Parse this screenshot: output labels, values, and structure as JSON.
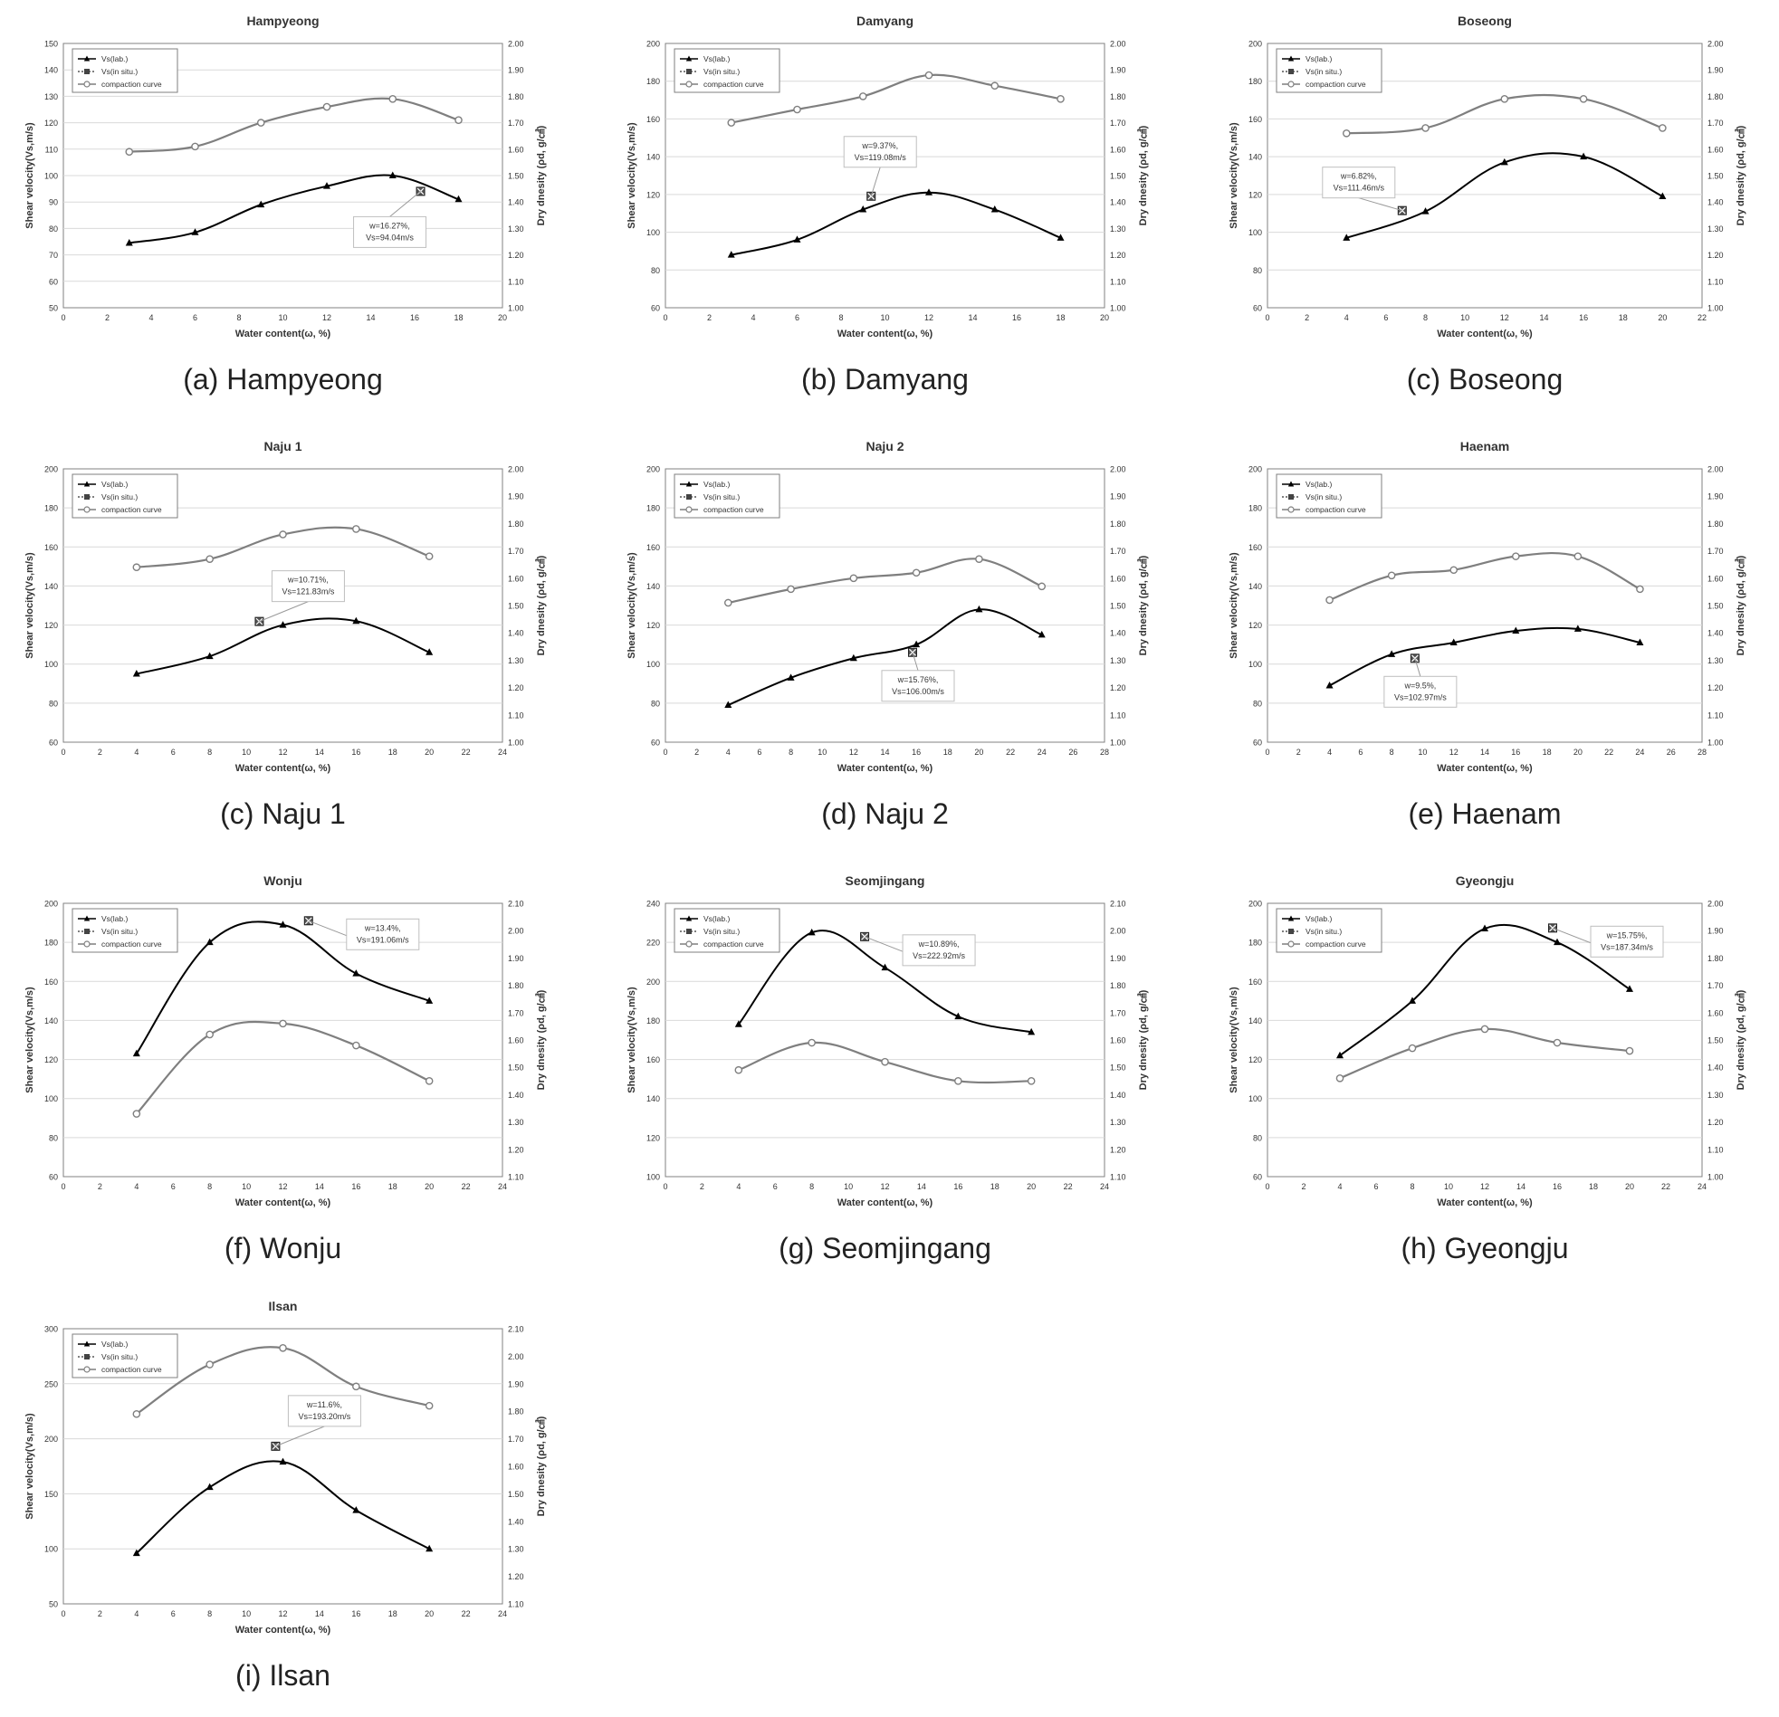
{
  "legend": {
    "lab": "Vs(lab.)",
    "insitu": "Vs(in situ.)",
    "compaction": "compaction curve"
  },
  "axes": {
    "x_label": "Water content(ω, %)",
    "y_left_label": "Shear velocity(Vs,m/s)",
    "y_right_label": "Dry dnesity (ρd, g/㎤)"
  },
  "colors": {
    "vs_line": "#000000",
    "compaction_line": "#7f7f7f",
    "axis": "#808080",
    "grid": "#d9d9d9",
    "text": "#333333"
  },
  "chart_data": [
    {
      "id": "hampyeong",
      "type": "line",
      "title": "Hampyeong",
      "caption": "(a) Hampyeong",
      "xlabel": "Water content(ω, %)",
      "ylabel": "Shear velocity(Vs,m/s)",
      "y2label": "Dry dnesity (ρd, g/㎤)",
      "xlim": [
        0,
        20
      ],
      "xstep": 2,
      "ylim": [
        50,
        150
      ],
      "ystep": 10,
      "y2lim": [
        1.0,
        2.0
      ],
      "y2step": 0.1,
      "grid": true,
      "legend": "top-left",
      "series": [
        {
          "name": "Vs(lab.)",
          "axis": "left",
          "marker": "triangle",
          "x": [
            3,
            6,
            9,
            12,
            15,
            18
          ],
          "values": [
            74.5,
            78.5,
            89,
            96,
            100,
            91
          ]
        },
        {
          "name": "compaction curve",
          "axis": "right",
          "marker": "circle",
          "x": [
            3,
            6,
            9,
            12,
            15,
            18
          ],
          "values": [
            1.59,
            1.61,
            1.7,
            1.76,
            1.79,
            1.71
          ]
        }
      ],
      "insitu": {
        "name": "Vs(in situ.)",
        "x": 16.27,
        "y": 94.04,
        "annotation": [
          "w=16.27%,",
          "Vs=94.04m/s"
        ],
        "label_pos": "below-left"
      }
    },
    {
      "id": "damyang",
      "type": "line",
      "title": "Damyang",
      "caption": "(b) Damyang",
      "xlabel": "Water content(ω, %)",
      "ylabel": "Shear velocity(Vs,m/s)",
      "y2label": "Dry dnesity (ρd, g/㎤)",
      "xlim": [
        0,
        20
      ],
      "xstep": 2,
      "ylim": [
        60,
        200
      ],
      "ystep": 20,
      "y2lim": [
        1.0,
        2.0
      ],
      "y2step": 0.1,
      "grid": true,
      "legend": "top-left",
      "series": [
        {
          "name": "Vs(lab.)",
          "axis": "left",
          "marker": "triangle",
          "x": [
            3,
            6,
            9,
            12,
            15,
            18
          ],
          "values": [
            88,
            96,
            112,
            121,
            112,
            97
          ]
        },
        {
          "name": "compaction curve",
          "axis": "right",
          "marker": "circle",
          "x": [
            3,
            6,
            9,
            12,
            15,
            18
          ],
          "values": [
            1.7,
            1.75,
            1.8,
            1.88,
            1.84,
            1.79
          ]
        }
      ],
      "insitu": {
        "name": "Vs(in situ.)",
        "x": 9.37,
        "y": 119.08,
        "annotation": [
          "w=9.37%,",
          "Vs=119.08m/s"
        ],
        "label_pos": "above"
      }
    },
    {
      "id": "boseong",
      "type": "line",
      "title": "Boseong",
      "caption": "(c) Boseong",
      "xlabel": "Water content(ω, %)",
      "ylabel": "Shear velocity(Vs,m/s)",
      "y2label": "Dry dnesity (ρd, g/㎤)",
      "xlim": [
        0,
        22
      ],
      "xstep": 2,
      "ylim": [
        60,
        200
      ],
      "ystep": 20,
      "y2lim": [
        1.0,
        2.0
      ],
      "y2step": 0.1,
      "grid": true,
      "legend": "top-left",
      "series": [
        {
          "name": "Vs(lab.)",
          "axis": "left",
          "marker": "triangle",
          "x": [
            4,
            8,
            12,
            16,
            20
          ],
          "values": [
            97,
            111,
            137,
            140,
            119
          ]
        },
        {
          "name": "compaction curve",
          "axis": "right",
          "marker": "circle",
          "x": [
            4,
            8,
            12,
            16,
            20
          ],
          "values": [
            1.66,
            1.68,
            1.79,
            1.79,
            1.68
          ]
        }
      ],
      "insitu": {
        "name": "Vs(in situ.)",
        "x": 6.82,
        "y": 111.46,
        "annotation": [
          "w=6.82%,",
          "Vs=111.46m/s"
        ],
        "label_pos": "above-left"
      }
    },
    {
      "id": "naju1",
      "type": "line",
      "title": "Naju 1",
      "caption": "(c) Naju 1",
      "xlabel": "Water content(ω, %)",
      "ylabel": "Shear velocity(Vs,m/s)",
      "y2label": "Dry dnesity (ρd, g/㎤)",
      "xlim": [
        0,
        24
      ],
      "xstep": 2,
      "ylim": [
        60,
        200
      ],
      "ystep": 20,
      "y2lim": [
        1.0,
        2.0
      ],
      "y2step": 0.1,
      "grid": true,
      "legend": "top-left",
      "series": [
        {
          "name": "Vs(lab.)",
          "axis": "left",
          "marker": "triangle",
          "x": [
            4,
            8,
            12,
            16,
            20
          ],
          "values": [
            95,
            104,
            120,
            122,
            106
          ]
        },
        {
          "name": "compaction curve",
          "axis": "right",
          "marker": "circle",
          "x": [
            4,
            8,
            12,
            16,
            20
          ],
          "values": [
            1.64,
            1.67,
            1.76,
            1.78,
            1.68
          ]
        }
      ],
      "insitu": {
        "name": "Vs(in situ.)",
        "x": 10.71,
        "y": 121.83,
        "annotation": [
          "w=10.71%,",
          "Vs=121.83m/s"
        ],
        "label_pos": "above-right"
      }
    },
    {
      "id": "naju2",
      "type": "line",
      "title": "Naju 2",
      "caption": "(d) Naju 2",
      "xlabel": "Water content(ω, %)",
      "ylabel": "Shear velocity(Vs,m/s)",
      "y2label": "Dry dnesity (ρd, g/㎤)",
      "xlim": [
        0,
        28
      ],
      "xstep": 2,
      "ylim": [
        60,
        200
      ],
      "ystep": 20,
      "y2lim": [
        1.0,
        2.0
      ],
      "y2step": 0.1,
      "grid": true,
      "legend": "top-left",
      "series": [
        {
          "name": "Vs(lab.)",
          "axis": "left",
          "marker": "triangle",
          "x": [
            4,
            8,
            12,
            16,
            20,
            24
          ],
          "values": [
            79,
            93,
            103,
            110,
            128,
            115
          ]
        },
        {
          "name": "compaction curve",
          "axis": "right",
          "marker": "circle",
          "x": [
            4,
            8,
            12,
            16,
            20,
            24
          ],
          "values": [
            1.51,
            1.56,
            1.6,
            1.62,
            1.67,
            1.57
          ]
        }
      ],
      "insitu": {
        "name": "Vs(in situ.)",
        "x": 15.76,
        "y": 106.0,
        "annotation": [
          "w=15.76%,",
          "Vs=106.00m/s"
        ],
        "label_pos": "below"
      }
    },
    {
      "id": "haenam",
      "type": "line",
      "title": "Haenam",
      "caption": "(e) Haenam",
      "xlabel": "Water content(ω, %)",
      "ylabel": "Shear velocity(Vs,m/s)",
      "y2label": "Dry dnesity (ρd, g/㎤)",
      "xlim": [
        0,
        28
      ],
      "xstep": 2,
      "ylim": [
        60,
        200
      ],
      "ystep": 20,
      "y2lim": [
        1.0,
        2.0
      ],
      "y2step": 0.1,
      "grid": true,
      "legend": "top-left",
      "series": [
        {
          "name": "Vs(lab.)",
          "axis": "left",
          "marker": "triangle",
          "x": [
            4,
            8,
            12,
            16,
            20,
            24
          ],
          "values": [
            89,
            105,
            111,
            117,
            118,
            111
          ]
        },
        {
          "name": "compaction curve",
          "axis": "right",
          "marker": "circle",
          "x": [
            4,
            8,
            12,
            16,
            20,
            24
          ],
          "values": [
            1.52,
            1.61,
            1.63,
            1.68,
            1.68,
            1.56
          ]
        }
      ],
      "insitu": {
        "name": "Vs(in situ.)",
        "x": 9.5,
        "y": 102.97,
        "annotation": [
          "w=9.5%,",
          "Vs=102.97m/s"
        ],
        "label_pos": "below"
      }
    },
    {
      "id": "wonju",
      "type": "line",
      "title": "Wonju",
      "caption": "(f) Wonju",
      "xlabel": "Water content(ω, %)",
      "ylabel": "Shear velocity(Vs,m/s)",
      "y2label": "Dry dnesity (ρd, g/㎤)",
      "xlim": [
        0,
        24
      ],
      "xstep": 2,
      "ylim": [
        60,
        200
      ],
      "ystep": 20,
      "y2lim": [
        1.1,
        2.1
      ],
      "y2step": 0.1,
      "grid": true,
      "legend": "top-left",
      "series": [
        {
          "name": "Vs(lab.)",
          "axis": "left",
          "marker": "triangle",
          "x": [
            4,
            8,
            12,
            16,
            20
          ],
          "values": [
            123,
            180,
            189,
            164,
            150
          ]
        },
        {
          "name": "compaction curve",
          "axis": "right",
          "marker": "circle",
          "x": [
            4,
            8,
            12,
            16,
            20
          ],
          "values": [
            1.33,
            1.62,
            1.66,
            1.58,
            1.45
          ]
        }
      ],
      "insitu": {
        "name": "Vs(in situ.)",
        "x": 13.4,
        "y": 191.06,
        "annotation": [
          "w=13.4%,",
          "Vs=191.06m/s"
        ],
        "label_pos": "right"
      }
    },
    {
      "id": "seomjingang",
      "type": "line",
      "title": "Seomjingang",
      "caption": "(g) Seomjingang",
      "xlabel": "Water content(ω, %)",
      "ylabel": "Shear velocity(Vs,m/s)",
      "y2label": "Dry dnesity (ρd, g/㎤)",
      "xlim": [
        0,
        24
      ],
      "xstep": 2,
      "ylim": [
        100,
        240
      ],
      "ystep": 20,
      "y2lim": [
        1.1,
        2.1
      ],
      "y2step": 0.1,
      "grid": true,
      "legend": "top-left",
      "series": [
        {
          "name": "Vs(lab.)",
          "axis": "left",
          "marker": "triangle",
          "x": [
            4,
            8,
            12,
            16,
            20
          ],
          "values": [
            178,
            225,
            207,
            182,
            174
          ]
        },
        {
          "name": "compaction curve",
          "axis": "right",
          "marker": "circle",
          "x": [
            4,
            8,
            12,
            16,
            20
          ],
          "values": [
            1.49,
            1.59,
            1.52,
            1.45,
            1.45
          ]
        }
      ],
      "insitu": {
        "name": "Vs(in situ.)",
        "x": 10.89,
        "y": 222.92,
        "annotation": [
          "w=10.89%,",
          "Vs=222.92m/s"
        ],
        "label_pos": "right"
      }
    },
    {
      "id": "gyeongju",
      "type": "line",
      "title": "Gyeongju",
      "caption": "(h) Gyeongju",
      "xlabel": "Water content(ω, %)",
      "ylabel": "Shear velocity(Vs,m/s)",
      "y2label": "Dry dnesity (ρd, g/㎤)",
      "xlim": [
        0,
        24
      ],
      "xstep": 2,
      "ylim": [
        60,
        200
      ],
      "ystep": 20,
      "y2lim": [
        1.0,
        2.0
      ],
      "y2step": 0.1,
      "grid": true,
      "legend": "top-left",
      "series": [
        {
          "name": "Vs(lab.)",
          "axis": "left",
          "marker": "triangle",
          "x": [
            4,
            8,
            12,
            16,
            20
          ],
          "values": [
            122,
            150,
            187,
            180,
            156
          ]
        },
        {
          "name": "compaction curve",
          "axis": "right",
          "marker": "circle",
          "x": [
            4,
            8,
            12,
            16,
            20
          ],
          "values": [
            1.36,
            1.47,
            1.54,
            1.49,
            1.46
          ]
        }
      ],
      "insitu": {
        "name": "Vs(in situ.)",
        "x": 15.75,
        "y": 187.34,
        "annotation": [
          "w=15.75%,",
          "Vs=187.34m/s"
        ],
        "label_pos": "right"
      }
    },
    {
      "id": "ilsan",
      "type": "line",
      "title": "Ilsan",
      "caption": "(i) Ilsan",
      "xlabel": "Water content(ω, %)",
      "ylabel": "Shear velocity(Vs,m/s)",
      "y2label": "Dry dnesity (ρd, g/㎤)",
      "xlim": [
        0,
        24
      ],
      "xstep": 2,
      "ylim": [
        50,
        300
      ],
      "ystep": 50,
      "y2lim": [
        1.1,
        2.1
      ],
      "y2step": 0.1,
      "grid": true,
      "legend": "top-left",
      "series": [
        {
          "name": "Vs(lab.)",
          "axis": "left",
          "marker": "triangle",
          "x": [
            4,
            8,
            12,
            16,
            20
          ],
          "values": [
            96,
            156,
            179,
            135,
            100
          ]
        },
        {
          "name": "compaction curve",
          "axis": "right",
          "marker": "circle",
          "x": [
            4,
            8,
            12,
            16,
            20
          ],
          "values": [
            1.79,
            1.97,
            2.03,
            1.89,
            1.82
          ]
        }
      ],
      "insitu": {
        "name": "Vs(in situ.)",
        "x": 11.6,
        "y": 193.2,
        "annotation": [
          "w=11.6%,",
          "Vs=193.20m/s"
        ],
        "label_pos": "above-right"
      }
    }
  ]
}
